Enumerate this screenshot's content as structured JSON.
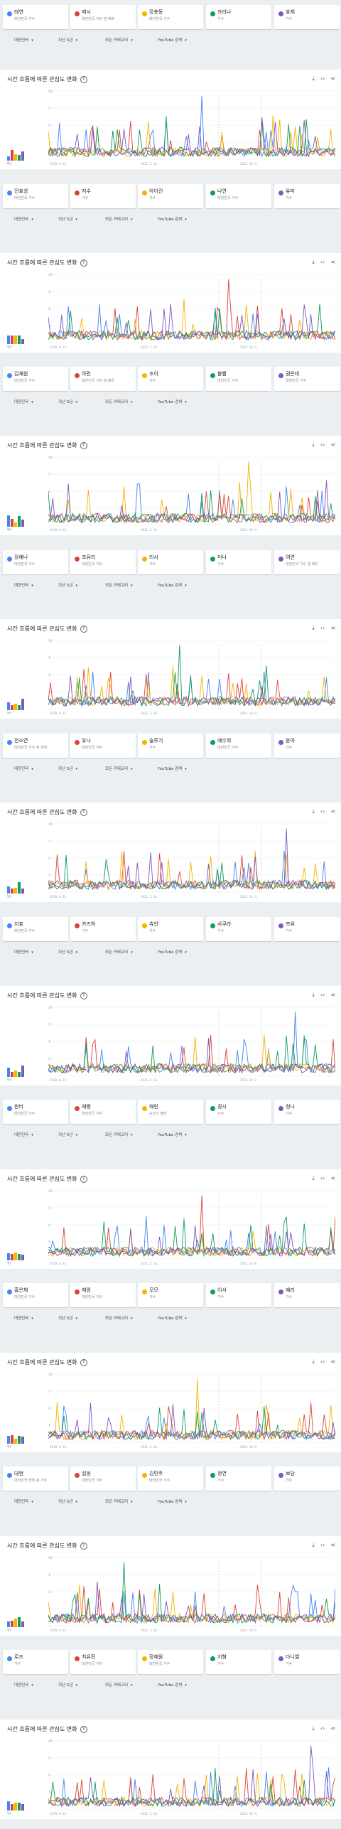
{
  "colors": [
    "#4285f4",
    "#db4437",
    "#f4b400",
    "#0f9d58",
    "#7e57c2"
  ],
  "panel_title": "시간 흐름에 따른 관심도 변화",
  "help_icon": "?",
  "legend_label": "평균",
  "chart_axis": {
    "y_ticks": [
      "100",
      "75",
      "50",
      "25"
    ],
    "x_dates": [
      "2019. 6. 23.",
      "2021. 2. 14.",
      "2022. 10. 9."
    ]
  },
  "filters": {
    "region": "대한민국",
    "period": "지난 5년",
    "category": "모든 카테고리",
    "search_type": "YouTube 검색"
  },
  "term_rows": [
    {
      "terms": [
        {
          "name": "태연",
          "sub": "대한민국 가수"
        },
        {
          "name": "제시",
          "sub": "대한민국 가수 겸 래퍼"
        },
        {
          "name": "장충동",
          "sub": "대한민국 가수"
        },
        {
          "name": "카리나",
          "sub": "가수"
        },
        {
          "name": "효제",
          "sub": "가수"
        }
      ]
    },
    {
      "terms": [
        {
          "name": "전효성",
          "sub": "대한민국 가수"
        },
        {
          "name": "지수",
          "sub": "가수"
        },
        {
          "name": "아이린",
          "sub": "가수"
        },
        {
          "name": "나연",
          "sub": "대한민국 가수"
        },
        {
          "name": "유미",
          "sub": "가수"
        }
      ]
    },
    {
      "terms": [
        {
          "name": "김채원",
          "sub": "대한민국 가수"
        },
        {
          "name": "아린",
          "sub": "대한민국 가수 겸 배우"
        },
        {
          "name": "조이",
          "sub": "가수"
        },
        {
          "name": "볼빨",
          "sub": "대한민국 가수"
        },
        {
          "name": "권은비",
          "sub": "대한민국 가수"
        }
      ]
    },
    {
      "terms": [
        {
          "name": "장예나",
          "sub": "대한민국 가수"
        },
        {
          "name": "조유리",
          "sub": "대한민국 가수"
        },
        {
          "name": "리사",
          "sub": "가수"
        },
        {
          "name": "미나",
          "sub": "가수"
        },
        {
          "name": "여연",
          "sub": "대한민국 가수 겸 배우"
        }
      ]
    },
    {
      "terms": [
        {
          "name": "전소연",
          "sub": "대한민국 가수 겸 래퍼"
        },
        {
          "name": "유나",
          "sub": "대한민국 가수"
        },
        {
          "name": "솔루기",
          "sub": "가수"
        },
        {
          "name": "예수희",
          "sub": "대한민국 가수"
        },
        {
          "name": "윤아",
          "sub": "가수"
        }
      ]
    },
    {
      "terms": [
        {
          "name": "지효",
          "sub": "대한민국 가수"
        },
        {
          "name": "카즈하",
          "sub": "가수"
        },
        {
          "name": "츄안",
          "sub": "가수"
        },
        {
          "name": "사쿠라",
          "sub": "가수"
        },
        {
          "name": "쯔위",
          "sub": "가수"
        }
      ]
    },
    {
      "terms": [
        {
          "name": "윈터",
          "sub": "대한민국 가수"
        },
        {
          "name": "채령",
          "sub": "대한민국 가수"
        },
        {
          "name": "해린",
          "sub": "뉴진스 멤버"
        },
        {
          "name": "경시",
          "sub": "가수"
        },
        {
          "name": "청나",
          "sub": "가수"
        }
      ]
    },
    {
      "terms": [
        {
          "name": "홍은채",
          "sub": "대한민국 가수"
        },
        {
          "name": "채원",
          "sub": "대한민국 가수"
        },
        {
          "name": "모모",
          "sub": "가수"
        },
        {
          "name": "이서",
          "sub": "가수"
        },
        {
          "name": "예리",
          "sub": "가수"
        }
      ]
    },
    {
      "terms": [
        {
          "name": "대현",
          "sub": "대한민국 래퍼 겸 가수"
        },
        {
          "name": "설윤",
          "sub": "대한민국 가수"
        },
        {
          "name": "김민주",
          "sub": "대한민국 가수"
        },
        {
          "name": "정연",
          "sub": "가수"
        },
        {
          "name": "보담",
          "sub": "가수"
        }
      ]
    },
    {
      "terms": [
        {
          "name": "로즈",
          "sub": "가수"
        },
        {
          "name": "치유진",
          "sub": "대한민국 가수"
        },
        {
          "name": "장예원",
          "sub": "대한민국 가수"
        },
        {
          "name": "지형",
          "sub": "가수"
        },
        {
          "name": "다니엘",
          "sub": "가수"
        }
      ]
    }
  ]
}
